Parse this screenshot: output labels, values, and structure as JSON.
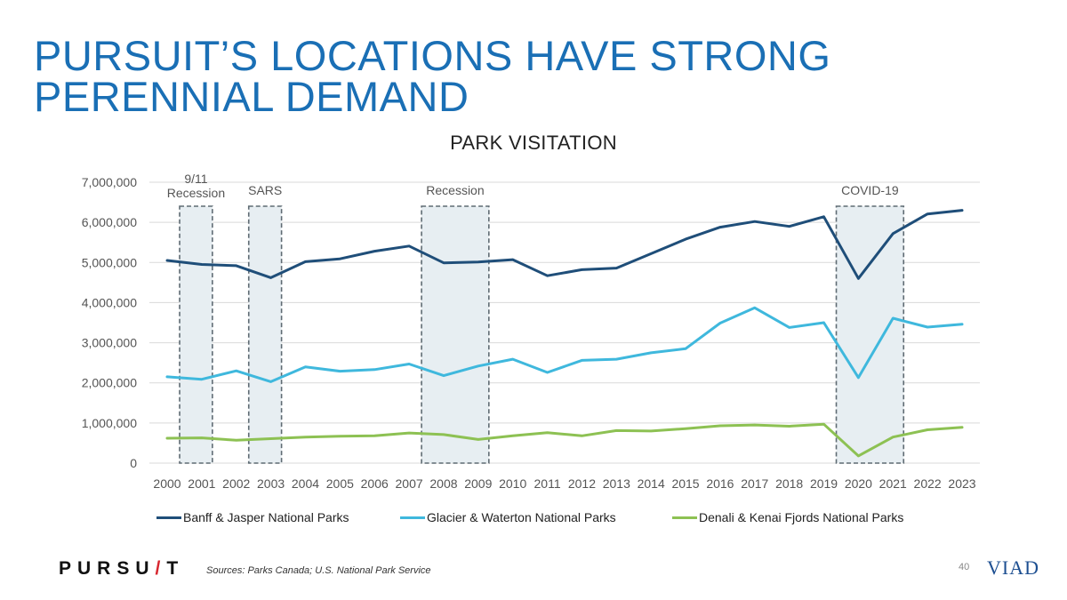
{
  "slide": {
    "title": "PURSUIT’S LOCATIONS HAVE STRONG PERENNIAL DEMAND",
    "sources": "Sources: Parks Canada; U.S. National Park Service",
    "page_number": "40",
    "brand_logo": "PURSU/T",
    "brand_logo_parts": [
      "PURSU",
      "/",
      "T"
    ],
    "company_logo": "VIAD"
  },
  "colors": {
    "title": "#1a6fb5",
    "banff": "#1f4e79",
    "glacier": "#3fb8dd",
    "denali": "#8dc153",
    "shade_fill": "#e7eef2",
    "shade_stroke": "#5f6b73",
    "grid": "#d9d9d9",
    "brand_accent": "#d7262e"
  },
  "chart_data": {
    "type": "line",
    "title": "PARK VISITATION",
    "xlabel": "",
    "ylabel": "",
    "x": [
      "2000",
      "2001",
      "2002",
      "2003",
      "2004",
      "2005",
      "2006",
      "2007",
      "2008",
      "2009",
      "2010",
      "2011",
      "2012",
      "2013",
      "2014",
      "2015",
      "2016",
      "2017",
      "2018",
      "2019",
      "2020",
      "2021",
      "2022",
      "2023"
    ],
    "ylim": [
      0,
      7000000
    ],
    "yticks": [
      0,
      1000000,
      2000000,
      3000000,
      4000000,
      5000000,
      6000000,
      7000000
    ],
    "ytick_labels": [
      "0",
      "1,000,000",
      "2,000,000",
      "3,000,000",
      "4,000,000",
      "5,000,000",
      "6,000,000",
      "7,000,000"
    ],
    "grid": true,
    "legend_position": "bottom",
    "series": [
      {
        "name": "Banff & Jasper National Parks",
        "color_key": "banff",
        "values": [
          5050000,
          4950000,
          4920000,
          4620000,
          5020000,
          5090000,
          5280000,
          5410000,
          4990000,
          5010000,
          5070000,
          4670000,
          4820000,
          4860000,
          5220000,
          5580000,
          5880000,
          6020000,
          5900000,
          6140000,
          4600000,
          5720000,
          6210000,
          6300000
        ]
      },
      {
        "name": "Glacier & Waterton National Parks",
        "color_key": "glacier",
        "values": [
          2150000,
          2090000,
          2300000,
          2030000,
          2400000,
          2290000,
          2330000,
          2470000,
          2180000,
          2420000,
          2590000,
          2260000,
          2560000,
          2590000,
          2750000,
          2850000,
          3490000,
          3870000,
          3380000,
          3500000,
          2130000,
          3610000,
          3390000,
          3460000
        ]
      },
      {
        "name": "Denali & Kenai Fjords National Parks",
        "color_key": "denali",
        "values": [
          620000,
          630000,
          570000,
          610000,
          650000,
          670000,
          680000,
          750000,
          710000,
          590000,
          680000,
          760000,
          680000,
          810000,
          800000,
          860000,
          930000,
          950000,
          920000,
          970000,
          180000,
          650000,
          830000,
          890000
        ]
      }
    ],
    "shaded_periods": [
      {
        "label_lines": [
          "9/11",
          "Recession"
        ],
        "start": "2000",
        "end": "2001"
      },
      {
        "label_lines": [
          "SARS"
        ],
        "start": "2002",
        "end": "2003"
      },
      {
        "label_lines": [
          "Recession"
        ],
        "start": "2007",
        "end": "2009"
      },
      {
        "label_lines": [
          "COVID-19"
        ],
        "start": "2019",
        "end": "2021"
      }
    ]
  }
}
